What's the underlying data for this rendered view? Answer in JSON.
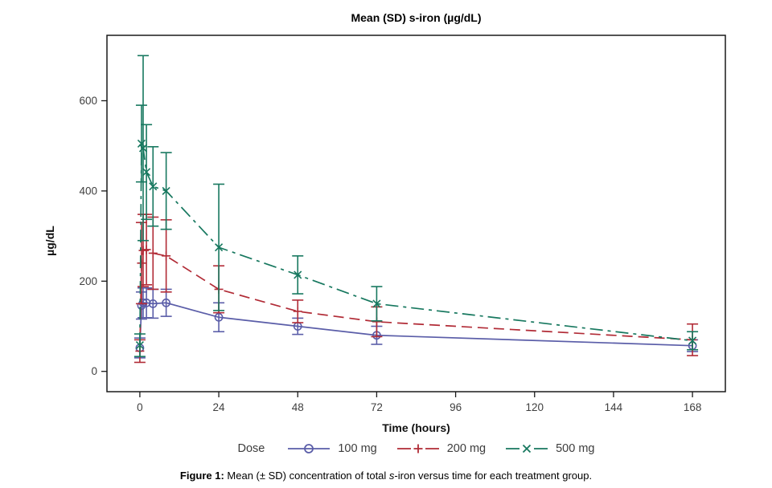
{
  "figure": {
    "caption": {
      "bold": "Figure 1:",
      "part1": " Mean (± SD) concentration of total ",
      "italic": "s",
      "part2": "-iron versus time for each treatment group."
    }
  },
  "chart_data": {
    "type": "line",
    "title": "Mean (SD) s-iron (µg/dL)",
    "xlabel": "Time (hours)",
    "ylabel": "µg/dL",
    "legend_title": "Dose",
    "legend_position": "bottom",
    "grid": false,
    "error_bars": "± SD",
    "x_ticks": [
      0,
      24,
      48,
      72,
      96,
      120,
      144,
      168
    ],
    "y_ticks": [
      0,
      200,
      400,
      600
    ],
    "xlim": [
      -10,
      178
    ],
    "ylim": [
      -45,
      745
    ],
    "x": [
      0,
      0.5,
      1,
      2,
      4,
      8,
      24,
      48,
      72,
      168
    ],
    "series": [
      {
        "name": "100 mg",
        "color": "#5a5da8",
        "marker": "circle",
        "dash": "solid",
        "values": [
          52,
          146,
          152,
          152,
          150,
          152,
          120,
          100,
          80,
          57
        ],
        "sd": [
          22,
          30,
          33,
          33,
          32,
          30,
          32,
          18,
          20,
          13
        ]
      },
      {
        "name": "200 mg",
        "color": "#b12b36",
        "marker": "plus",
        "dash": "dashed",
        "values": [
          45,
          240,
          268,
          270,
          262,
          256,
          182,
          133,
          110,
          70
        ],
        "sd": [
          25,
          90,
          80,
          78,
          80,
          80,
          52,
          25,
          33,
          35
        ]
      },
      {
        "name": "500 mg",
        "color": "#17785f",
        "marker": "x",
        "dash": "dashdot",
        "values": [
          58,
          505,
          495,
          442,
          410,
          400,
          275,
          214,
          150,
          68
        ],
        "sd": [
          25,
          85,
          205,
          105,
          88,
          85,
          140,
          42,
          38,
          20
        ]
      }
    ]
  }
}
